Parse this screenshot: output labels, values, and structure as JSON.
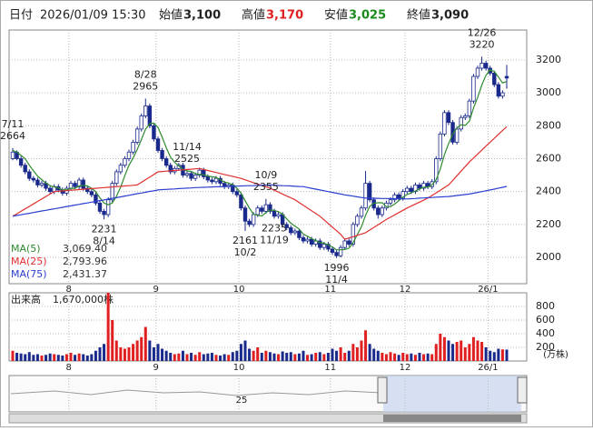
{
  "header": {
    "date_label": "日付",
    "datetime": "2026/01/09 15:30",
    "open_label": "始値",
    "open": "3,100",
    "high_label": "高値",
    "high": "3,170",
    "low_label": "安値",
    "low": "3,025",
    "close_label": "終値",
    "close": "3,090"
  },
  "chart_data": {
    "type": "candlestick",
    "up_color": "#ffffff",
    "down_color": "#1a2a8c",
    "grid": true,
    "categories": [
      null,
      null,
      null,
      null,
      null,
      null,
      null,
      null,
      null,
      null,
      null,
      null,
      null,
      null,
      "8",
      null,
      null,
      null,
      null,
      null,
      null,
      null,
      null,
      null,
      null,
      null,
      null,
      null,
      null,
      null,
      null,
      null,
      null,
      null,
      null,
      "9",
      null,
      null,
      null,
      null,
      null,
      null,
      null,
      null,
      null,
      null,
      null,
      null,
      null,
      null,
      null,
      null,
      null,
      null,
      null,
      "10",
      null,
      null,
      null,
      null,
      null,
      null,
      null,
      null,
      null,
      null,
      null,
      null,
      null,
      null,
      null,
      null,
      null,
      null,
      null,
      null,
      null,
      "11",
      null,
      null,
      null,
      null,
      null,
      null,
      null,
      null,
      null,
      null,
      null,
      null,
      null,
      null,
      null,
      null,
      null,
      "12",
      null,
      null,
      null,
      null,
      null,
      null,
      null,
      null,
      null,
      null,
      null,
      null,
      null,
      null,
      null,
      null,
      null,
      null,
      null,
      "26/1",
      null,
      null,
      null,
      null
    ],
    "candles": [
      [
        2600,
        2664,
        2590,
        2640
      ],
      [
        2640,
        2650,
        2590,
        2600
      ],
      [
        2600,
        2615,
        2545,
        2560
      ],
      [
        2560,
        2575,
        2505,
        2520
      ],
      [
        2520,
        2535,
        2465,
        2480
      ],
      [
        2480,
        2495,
        2455,
        2470
      ],
      [
        2470,
        2485,
        2425,
        2440
      ],
      [
        2440,
        2465,
        2425,
        2450
      ],
      [
        2450,
        2465,
        2405,
        2420
      ],
      [
        2420,
        2435,
        2385,
        2400
      ],
      [
        2400,
        2445,
        2385,
        2430
      ],
      [
        2430,
        2445,
        2395,
        2410
      ],
      [
        2410,
        2425,
        2375,
        2390
      ],
      [
        2390,
        2435,
        2375,
        2420
      ],
      [
        2420,
        2465,
        2405,
        2450
      ],
      [
        2450,
        2465,
        2415,
        2430
      ],
      [
        2430,
        2485,
        2415,
        2470
      ],
      [
        2470,
        2485,
        2405,
        2420
      ],
      [
        2420,
        2435,
        2385,
        2400
      ],
      [
        2400,
        2415,
        2365,
        2380
      ],
      [
        2380,
        2395,
        2315,
        2330
      ],
      [
        2330,
        2345,
        2265,
        2280
      ],
      [
        2280,
        2295,
        2231,
        2260
      ],
      [
        2260,
        2365,
        2245,
        2350
      ],
      [
        2350,
        2465,
        2335,
        2450
      ],
      [
        2450,
        2535,
        2435,
        2520
      ],
      [
        2520,
        2575,
        2505,
        2560
      ],
      [
        2560,
        2615,
        2545,
        2600
      ],
      [
        2600,
        2655,
        2585,
        2640
      ],
      [
        2640,
        2715,
        2625,
        2700
      ],
      [
        2700,
        2795,
        2685,
        2780
      ],
      [
        2780,
        2875,
        2765,
        2860
      ],
      [
        2860,
        2965,
        2845,
        2920
      ],
      [
        2920,
        2935,
        2785,
        2800
      ],
      [
        2800,
        2815,
        2705,
        2720
      ],
      [
        2720,
        2735,
        2635,
        2650
      ],
      [
        2650,
        2665,
        2585,
        2600
      ],
      [
        2600,
        2615,
        2545,
        2560
      ],
      [
        2560,
        2575,
        2505,
        2520
      ],
      [
        2520,
        2555,
        2505,
        2540
      ],
      [
        2540,
        2575,
        2525,
        2560
      ],
      [
        2560,
        2575,
        2485,
        2500
      ],
      [
        2500,
        2525,
        2485,
        2510
      ],
      [
        2510,
        2525,
        2465,
        2480
      ],
      [
        2480,
        2515,
        2465,
        2500
      ],
      [
        2500,
        2545,
        2485,
        2530
      ],
      [
        2530,
        2545,
        2475,
        2490
      ],
      [
        2490,
        2505,
        2455,
        2470
      ],
      [
        2470,
        2485,
        2445,
        2460
      ],
      [
        2460,
        2495,
        2445,
        2480
      ],
      [
        2480,
        2495,
        2435,
        2450
      ],
      [
        2450,
        2465,
        2415,
        2430
      ],
      [
        2430,
        2455,
        2415,
        2440
      ],
      [
        2440,
        2455,
        2385,
        2400
      ],
      [
        2400,
        2415,
        2365,
        2380
      ],
      [
        2380,
        2395,
        2285,
        2300
      ],
      [
        2300,
        2315,
        2161,
        2220
      ],
      [
        2220,
        2235,
        2185,
        2200
      ],
      [
        2200,
        2275,
        2185,
        2260
      ],
      [
        2260,
        2315,
        2245,
        2300
      ],
      [
        2300,
        2315,
        2265,
        2280
      ],
      [
        2280,
        2355,
        2265,
        2320
      ],
      [
        2320,
        2335,
        2265,
        2280
      ],
      [
        2280,
        2295,
        2235,
        2250
      ],
      [
        2250,
        2275,
        2235,
        2260
      ],
      [
        2260,
        2275,
        2185,
        2200
      ],
      [
        2200,
        2215,
        2165,
        2180
      ],
      [
        2180,
        2195,
        2135,
        2150
      ],
      [
        2150,
        2175,
        2135,
        2160
      ],
      [
        2160,
        2175,
        2105,
        2120
      ],
      [
        2120,
        2135,
        2085,
        2100
      ],
      [
        2100,
        2125,
        2085,
        2110
      ],
      [
        2110,
        2125,
        2065,
        2080
      ],
      [
        2080,
        2115,
        2065,
        2100
      ],
      [
        2100,
        2115,
        2045,
        2060
      ],
      [
        2060,
        2095,
        2045,
        2080
      ],
      [
        2080,
        2095,
        2035,
        2050
      ],
      [
        2050,
        2065,
        2015,
        2030
      ],
      [
        2030,
        2045,
        1996,
        2010
      ],
      [
        2010,
        2075,
        2000,
        2060
      ],
      [
        2060,
        2115,
        2045,
        2100
      ],
      [
        2100,
        2115,
        2065,
        2080
      ],
      [
        2080,
        2215,
        2065,
        2200
      ],
      [
        2200,
        2265,
        2185,
        2250
      ],
      [
        2250,
        2315,
        2235,
        2300
      ],
      [
        2300,
        2525,
        2285,
        2450
      ],
      [
        2450,
        2465,
        2335,
        2350
      ],
      [
        2350,
        2365,
        2285,
        2300
      ],
      [
        2300,
        2315,
        2235,
        2260
      ],
      [
        2260,
        2315,
        2245,
        2300
      ],
      [
        2300,
        2345,
        2285,
        2330
      ],
      [
        2330,
        2365,
        2315,
        2350
      ],
      [
        2350,
        2395,
        2335,
        2380
      ],
      [
        2380,
        2395,
        2345,
        2360
      ],
      [
        2360,
        2415,
        2345,
        2400
      ],
      [
        2400,
        2435,
        2385,
        2420
      ],
      [
        2420,
        2435,
        2385,
        2400
      ],
      [
        2400,
        2455,
        2385,
        2440
      ],
      [
        2440,
        2455,
        2405,
        2420
      ],
      [
        2420,
        2465,
        2405,
        2450
      ],
      [
        2450,
        2465,
        2415,
        2430
      ],
      [
        2430,
        2475,
        2415,
        2460
      ],
      [
        2460,
        2615,
        2445,
        2600
      ],
      [
        2600,
        2765,
        2585,
        2750
      ],
      [
        2750,
        2895,
        2735,
        2880
      ],
      [
        2880,
        2895,
        2805,
        2820
      ],
      [
        2820,
        2835,
        2685,
        2700
      ],
      [
        2700,
        2795,
        2685,
        2780
      ],
      [
        2780,
        2865,
        2765,
        2850
      ],
      [
        2850,
        2875,
        2835,
        2860
      ],
      [
        2860,
        2965,
        2845,
        2950
      ],
      [
        2950,
        3115,
        2935,
        3100
      ],
      [
        3100,
        3165,
        3085,
        3150
      ],
      [
        3150,
        3220,
        3135,
        3180
      ],
      [
        3180,
        3195,
        3135,
        3150
      ],
      [
        3150,
        3165,
        3105,
        3120
      ],
      [
        3120,
        3135,
        3035,
        3050
      ],
      [
        3050,
        3065,
        2965,
        2980
      ],
      [
        2980,
        3015,
        2965,
        3000
      ],
      [
        3100,
        3170,
        3025,
        3090
      ]
    ],
    "series": [
      {
        "name": "MA(5)",
        "legend_value": "3,069.40",
        "color": "#2e8b2e",
        "values": [
          2650,
          2640,
          2620,
          2600,
          2560,
          2526,
          2494,
          2472,
          2452,
          2436,
          2428,
          2422,
          2410,
          2410,
          2420,
          2420,
          2434,
          2438,
          2434,
          2420,
          2400,
          2362,
          2330,
          2320,
          2330,
          2372,
          2428,
          2496,
          2560,
          2604,
          2656,
          2716,
          2780,
          2812,
          2816,
          2790,
          2730,
          2666,
          2610,
          2578,
          2556,
          2536,
          2526,
          2522,
          2510,
          2504,
          2502,
          2494,
          2490,
          2486,
          2472,
          2458,
          2452,
          2442,
          2420,
          2390,
          2344,
          2300,
          2262,
          2256,
          2252,
          2272,
          2288,
          2286,
          2278,
          2262,
          2234,
          2208,
          2190,
          2172,
          2142,
          2128,
          2114,
          2102,
          2090,
          2086,
          2076,
          2064,
          2046,
          2046,
          2048,
          2056,
          2090,
          2138,
          2186,
          2256,
          2310,
          2330,
          2332,
          2332,
          2308,
          2308,
          2324,
          2344,
          2366,
          2382,
          2392,
          2404,
          2416,
          2426,
          2428,
          2440,
          2472,
          2538,
          2624,
          2692,
          2750,
          2786,
          2806,
          2802,
          2828,
          2908,
          2972,
          3048,
          3106,
          3140,
          3130,
          3096,
          3060,
          3069.4
        ]
      },
      {
        "name": "MA(25)",
        "legend_value": "2,793.96",
        "color": "#e03030",
        "values": [
          2250,
          2265,
          2280,
          2295,
          2310,
          2325,
          2340,
          2355,
          2370,
          2385,
          2400,
          2402,
          2404,
          2406,
          2408,
          2410,
          2412,
          2414,
          2416,
          2418,
          2420,
          2422,
          2424,
          2426,
          2428,
          2430,
          2432,
          2434,
          2436,
          2438,
          2440,
          2456,
          2472,
          2488,
          2504,
          2520,
          2522,
          2524,
          2526,
          2528,
          2530,
          2532,
          2534,
          2536,
          2538,
          2540,
          2534,
          2528,
          2522,
          2516,
          2510,
          2504,
          2498,
          2492,
          2486,
          2480,
          2471,
          2463,
          2454,
          2446,
          2437,
          2429,
          2420,
          2408,
          2397,
          2385,
          2373,
          2362,
          2350,
          2333,
          2317,
          2300,
          2283,
          2267,
          2250,
          2228,
          2206,
          2184,
          2162,
          2140,
          2110,
          2118,
          2126,
          2134,
          2142,
          2150,
          2166,
          2182,
          2198,
          2214,
          2230,
          2244,
          2258,
          2272,
          2286,
          2300,
          2312,
          2324,
          2336,
          2348,
          2360,
          2376,
          2392,
          2408,
          2424,
          2440,
          2468,
          2496,
          2524,
          2552,
          2580,
          2604,
          2628,
          2652,
          2676,
          2700,
          2724,
          2748,
          2772,
          2793.96
        ]
      },
      {
        "name": "MA(75)",
        "legend_value": "2,431.37",
        "color": "#2b3fd0",
        "values": [
          2250,
          2255,
          2259,
          2264,
          2268,
          2273,
          2277,
          2282,
          2286,
          2291,
          2295,
          2300,
          2304,
          2309,
          2313,
          2318,
          2322,
          2327,
          2331,
          2336,
          2340,
          2345,
          2349,
          2354,
          2359,
          2363,
          2368,
          2373,
          2377,
          2382,
          2387,
          2391,
          2396,
          2401,
          2405,
          2410,
          2412,
          2413,
          2415,
          2416,
          2418,
          2419,
          2421,
          2422,
          2424,
          2425,
          2426,
          2427,
          2428,
          2429,
          2429,
          2430,
          2431,
          2432,
          2433,
          2434,
          2435,
          2436,
          2436,
          2437,
          2438,
          2439,
          2440,
          2439,
          2437,
          2436,
          2435,
          2434,
          2432,
          2431,
          2430,
          2425,
          2420,
          2415,
          2410,
          2405,
          2400,
          2395,
          2390,
          2385,
          2380,
          2376,
          2372,
          2368,
          2364,
          2360,
          2360,
          2359,
          2359,
          2358,
          2358,
          2357,
          2357,
          2356,
          2356,
          2355,
          2357,
          2358,
          2360,
          2361,
          2363,
          2364,
          2366,
          2367,
          2369,
          2370,
          2373,
          2376,
          2379,
          2382,
          2385,
          2390,
          2395,
          2400,
          2405,
          2410,
          2415,
          2421,
          2426,
          2431.37
        ]
      }
    ],
    "ylim": [
      1840,
      3382
    ],
    "yticks": [
      2000,
      2200,
      2400,
      2600,
      2800,
      3000,
      3200
    ],
    "annotations": [
      {
        "label": "7/11",
        "value": 2664,
        "side": "high"
      },
      {
        "label": "8/14",
        "value": 2231,
        "side": "low"
      },
      {
        "label": "8/28",
        "value": 2965,
        "side": "high"
      },
      {
        "label": "10/2",
        "value": 2161,
        "side": "low"
      },
      {
        "label": "10/9",
        "value": 2355,
        "side": "high"
      },
      {
        "label": "11/4",
        "value": 1996,
        "side": "low"
      },
      {
        "label": "11/14",
        "value": 2525,
        "side": "high"
      },
      {
        "label": "11/19",
        "value": 2235,
        "side": "low"
      },
      {
        "label": "12/26",
        "value": 3220,
        "side": "high"
      }
    ],
    "volume": {
      "title": "出来高",
      "last": "1,670,000株",
      "unit": "(万株)",
      "ylim": [
        0,
        1000
      ],
      "yticks": [
        200,
        400,
        600,
        800
      ],
      "up_color": "#e02020",
      "down_color": "#1a2a8c",
      "values": [
        150,
        120,
        110,
        100,
        130,
        90,
        100,
        80,
        90,
        110,
        100,
        90,
        80,
        100,
        120,
        90,
        110,
        100,
        80,
        100,
        150,
        200,
        250,
        1000,
        600,
        300,
        200,
        180,
        200,
        250,
        300,
        350,
        500,
        300,
        200,
        250,
        180,
        150,
        120,
        100,
        110,
        150,
        100,
        120,
        90,
        130,
        100,
        110,
        120,
        90,
        80,
        100,
        90,
        130,
        150,
        250,
        300,
        180,
        150,
        200,
        120,
        150,
        130,
        110,
        100,
        140,
        120,
        130,
        100,
        110,
        150,
        90,
        100,
        120,
        130,
        100,
        120,
        180,
        150,
        200,
        120,
        150,
        250,
        200,
        300,
        450,
        250,
        180,
        150,
        120,
        100,
        130,
        110,
        90,
        120,
        100,
        110,
        90,
        120,
        100,
        110,
        100,
        250,
        400,
        350,
        300,
        250,
        280,
        300,
        200,
        250,
        350,
        300,
        280,
        200,
        150,
        130,
        180,
        170,
        167
      ]
    },
    "navigator_label": "25"
  }
}
